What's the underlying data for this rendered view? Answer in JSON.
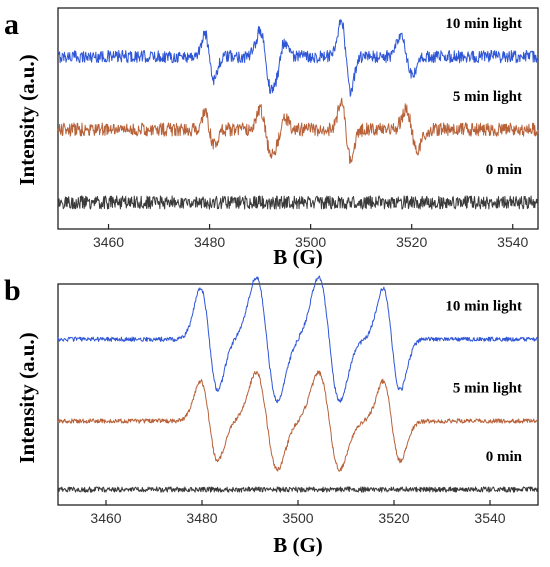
{
  "chart_data": [
    {
      "panel": "a",
      "type": "line",
      "xlabel": "B (G)",
      "ylabel": "Intensity (a.u.)",
      "xlim": [
        3450,
        3545
      ],
      "xticks": [
        3460,
        3480,
        3500,
        3520,
        3540
      ],
      "grid": false,
      "series": [
        {
          "name": "10 min light",
          "color": "#2f56d6",
          "offset": 0.78,
          "noise": 0.028,
          "peaks": [
            {
              "x": 3480,
              "amp": 0.1,
              "w": 0.9
            },
            {
              "x": 3491,
              "amp": 0.12,
              "w": 1.0
            },
            {
              "x": 3494,
              "amp": -0.07,
              "w": 0.9
            },
            {
              "x": 3507,
              "amp": 0.16,
              "w": 0.9
            },
            {
              "x": 3519,
              "amp": 0.09,
              "w": 1.1
            }
          ]
        },
        {
          "name": "5 min light",
          "color": "#b8623a",
          "offset": 0.45,
          "noise": 0.03,
          "peaks": [
            {
              "x": 3480,
              "amp": 0.07,
              "w": 0.9
            },
            {
              "x": 3491,
              "amp": 0.09,
              "w": 1.0
            },
            {
              "x": 3494,
              "amp": -0.05,
              "w": 0.9
            },
            {
              "x": 3507,
              "amp": 0.13,
              "w": 0.9
            },
            {
              "x": 3520,
              "amp": 0.09,
              "w": 1.1
            }
          ]
        },
        {
          "name": "0 min",
          "color": "#3a3a3a",
          "offset": 0.12,
          "noise": 0.03,
          "peaks": []
        }
      ]
    },
    {
      "panel": "b",
      "type": "line",
      "xlabel": "B (G)",
      "ylabel": "Intensity (a.u.)",
      "xlim": [
        3450,
        3550
      ],
      "xticks": [
        3460,
        3480,
        3500,
        3520,
        3540
      ],
      "grid": false,
      "series": [
        {
          "name": "10 min light",
          "color": "#2f56d6",
          "offset": 0.75,
          "noise": 0.01,
          "peaks": [
            {
              "x": 3481.5,
              "amp": 0.23,
              "w": 1.8
            },
            {
              "x": 3493.5,
              "amp": 0.28,
              "w": 2.2
            },
            {
              "x": 3506.5,
              "amp": 0.28,
              "w": 2.2
            },
            {
              "x": 3519.5,
              "amp": 0.23,
              "w": 1.8
            }
          ]
        },
        {
          "name": "5 min light",
          "color": "#b8623a",
          "offset": 0.38,
          "noise": 0.01,
          "peaks": [
            {
              "x": 3481.5,
              "amp": 0.18,
              "w": 1.8
            },
            {
              "x": 3493.5,
              "amp": 0.22,
              "w": 2.2
            },
            {
              "x": 3506.5,
              "amp": 0.22,
              "w": 2.2
            },
            {
              "x": 3519.5,
              "amp": 0.18,
              "w": 1.8
            }
          ]
        },
        {
          "name": "0 min",
          "color": "#3a3a3a",
          "offset": 0.07,
          "noise": 0.012,
          "peaks": []
        }
      ]
    }
  ]
}
